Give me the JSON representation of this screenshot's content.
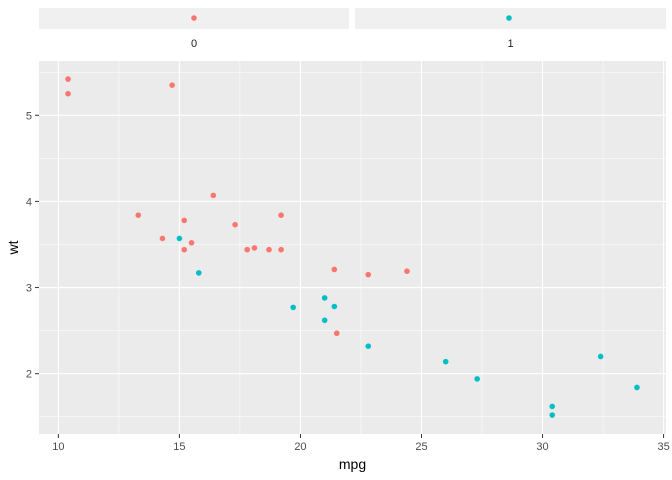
{
  "chart_data": {
    "type": "scatter",
    "title": "",
    "xlabel": "mpg",
    "ylabel": "wt",
    "xlim": [
      9.2,
      35.1
    ],
    "ylim": [
      1.3,
      5.63
    ],
    "x_ticks": [
      10,
      15,
      20,
      25,
      30,
      35
    ],
    "y_ticks": [
      2,
      3,
      4,
      5
    ],
    "grid": true,
    "legend": "none",
    "panel_background": "#ebebeb",
    "strip_background": "#f0f0f0",
    "facets": [
      {
        "label": "0",
        "color": "#f8766d",
        "point": {
          "x": 15.6,
          "y": 0.5
        }
      },
      {
        "label": "1",
        "color": "#00bfc4",
        "point": {
          "x": 28.7,
          "y": 0.5
        }
      }
    ],
    "series": [
      {
        "color": "#f8766d",
        "x": [
          10.4,
          10.4,
          14.7,
          13.3,
          14.3,
          15.2,
          15.2,
          15.5,
          16.4,
          17.3,
          17.8,
          18.1,
          18.7,
          19.2,
          19.2,
          21.4,
          21.5,
          22.8,
          24.4
        ],
        "y": [
          5.42,
          5.25,
          5.35,
          3.84,
          3.57,
          3.78,
          3.44,
          3.52,
          4.07,
          3.73,
          3.44,
          3.46,
          3.44,
          3.84,
          3.44,
          3.21,
          2.47,
          3.15,
          3.19
        ]
      },
      {
        "color": "#00bfc4",
        "x": [
          15.0,
          15.8,
          19.7,
          21.0,
          21.0,
          21.4,
          22.8,
          26.0,
          27.3,
          30.4,
          30.4,
          32.4,
          33.9
        ],
        "y": [
          3.57,
          3.17,
          2.77,
          2.88,
          2.62,
          2.78,
          2.32,
          2.14,
          1.94,
          1.62,
          1.52,
          2.2,
          1.84
        ]
      }
    ]
  }
}
